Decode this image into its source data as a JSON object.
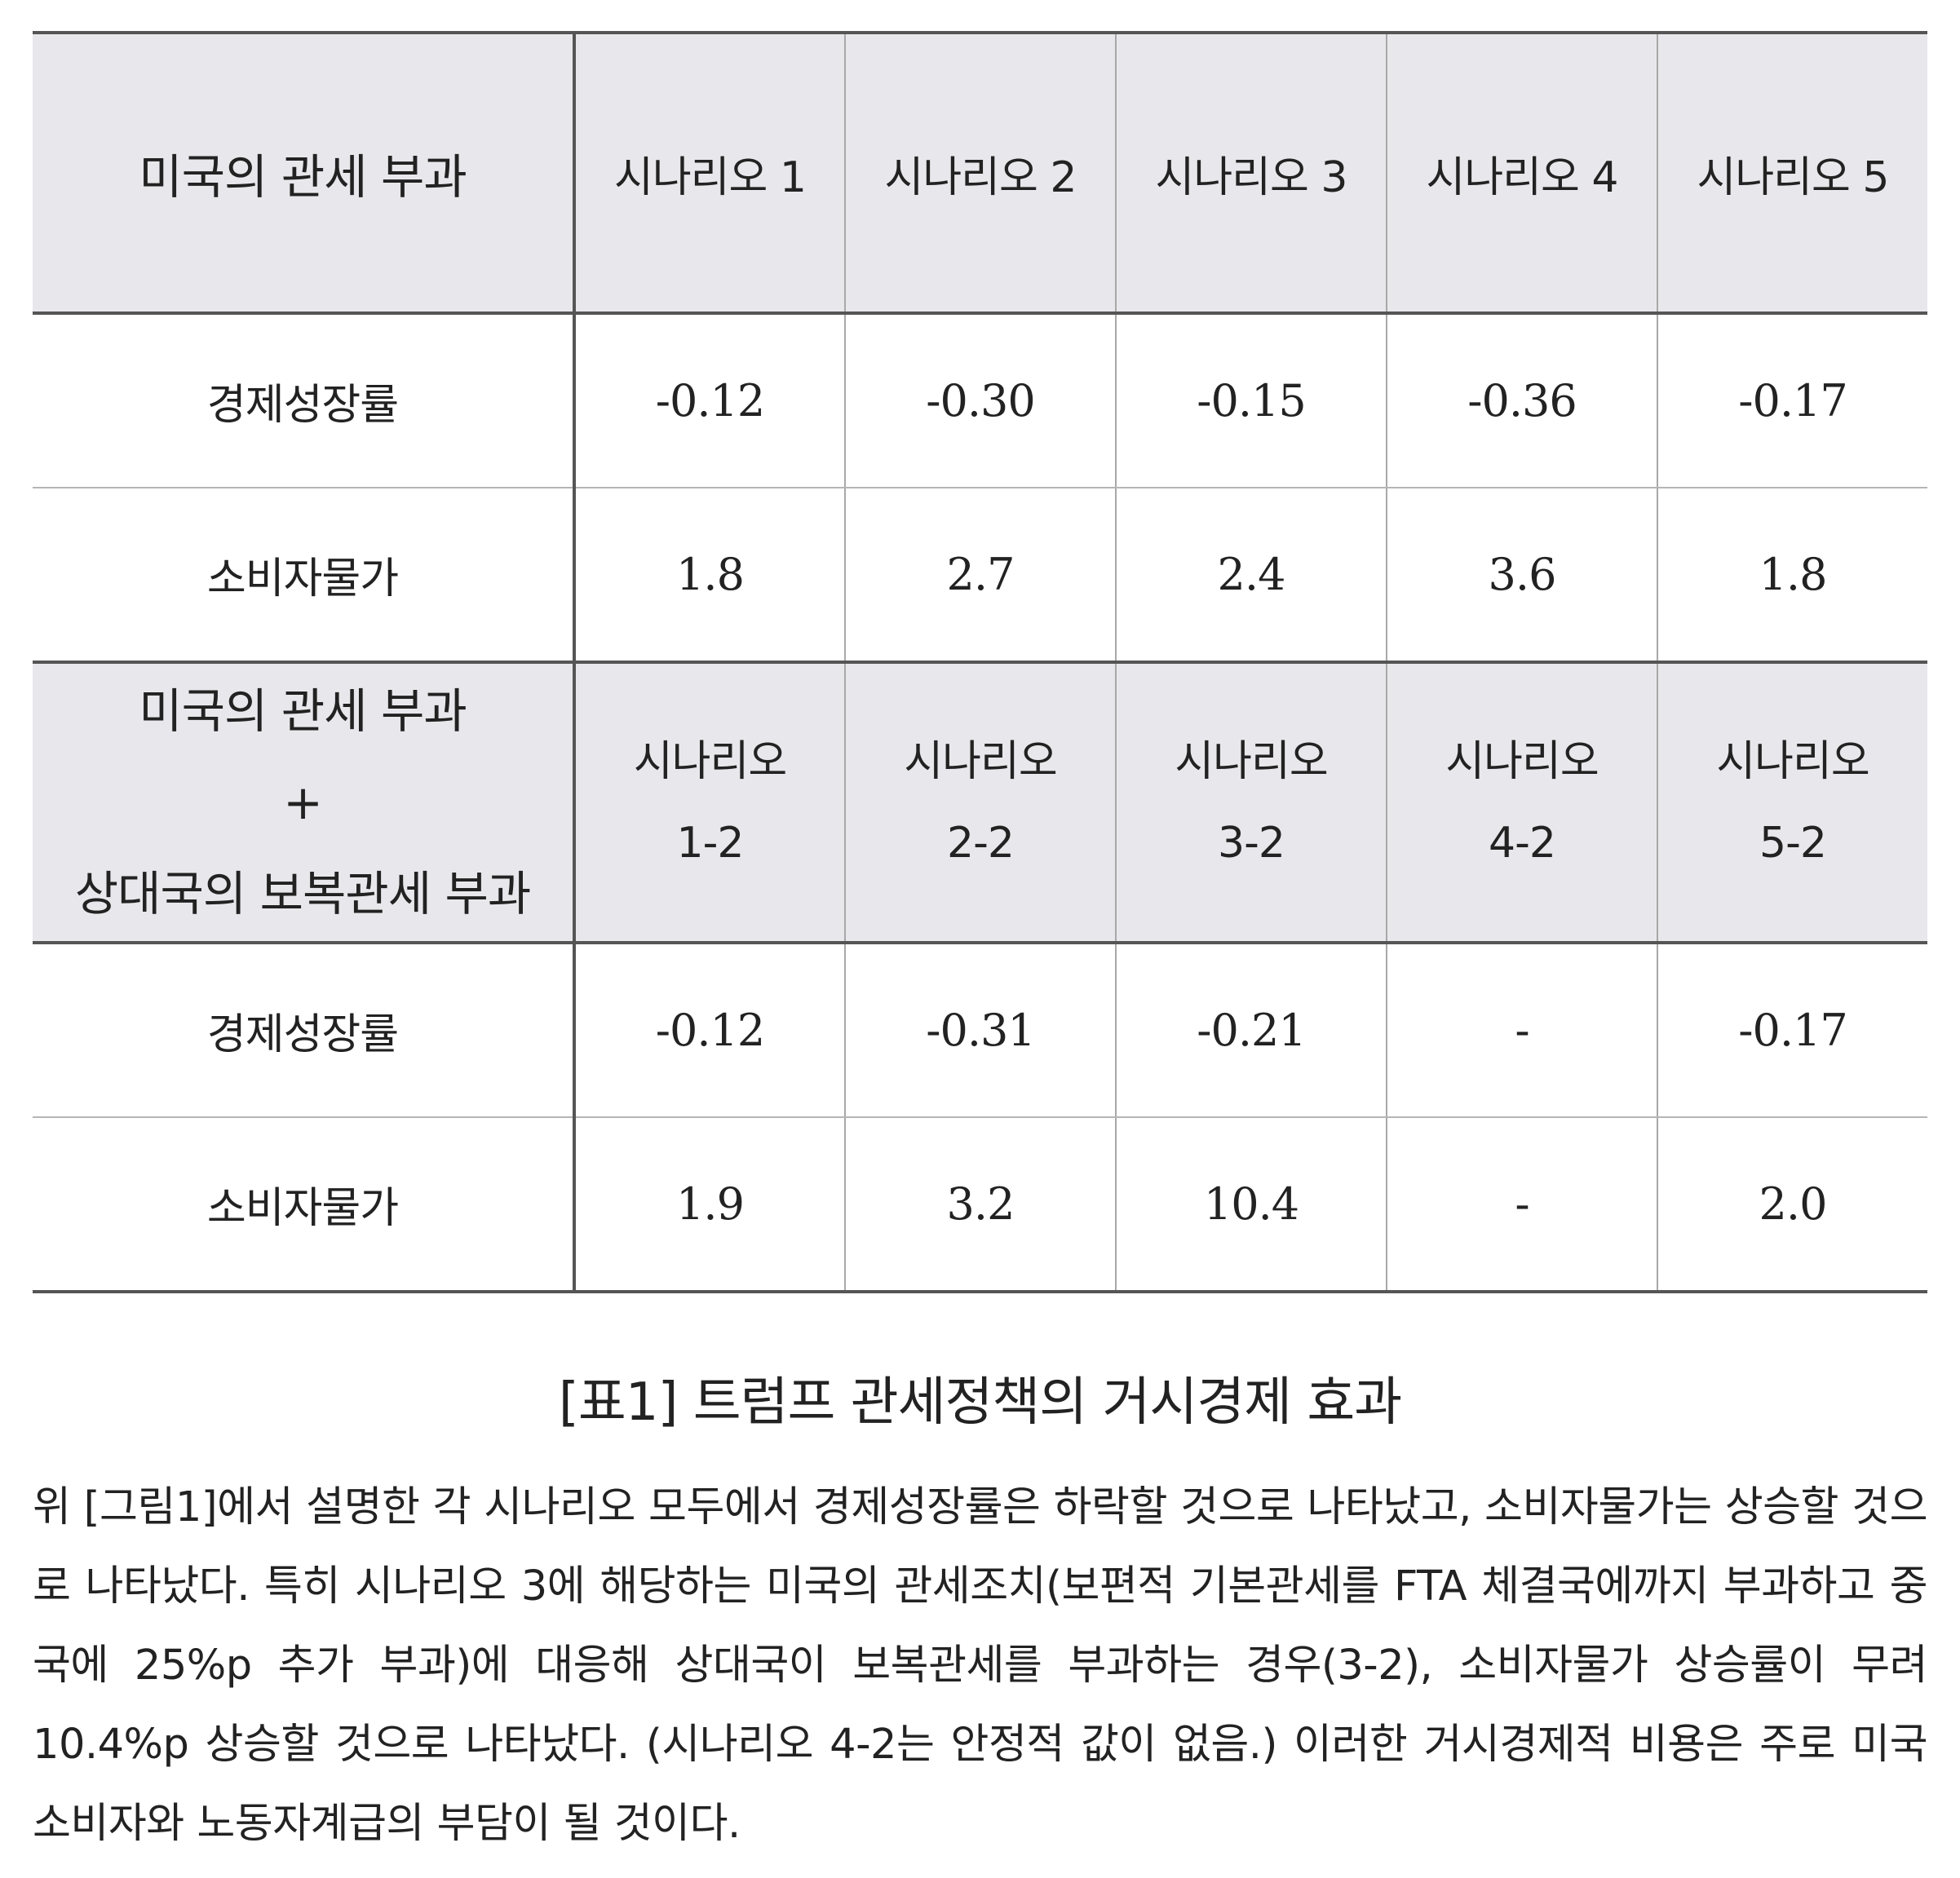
{
  "table": {
    "section1": {
      "header": {
        "label": "미국의 관세 부과",
        "scenarios": [
          "시나리오 1",
          "시나리오 2",
          "시나리오 3",
          "시나리오 4",
          "시나리오 5"
        ]
      },
      "rows": [
        {
          "label": "경제성장률",
          "values": [
            "-0.12",
            "-0.30",
            "-0.15",
            "-0.36",
            "-0.17"
          ]
        },
        {
          "label": "소비자물가",
          "values": [
            "1.8",
            "2.7",
            "2.4",
            "3.6",
            "1.8"
          ]
        }
      ]
    },
    "section2": {
      "header": {
        "label_lines": [
          "미국의 관세 부과",
          "+",
          "상대국의 보복관세 부과"
        ],
        "scenarios": [
          {
            "line1": "시나리오",
            "line2": "1-2"
          },
          {
            "line1": "시나리오",
            "line2": "2-2"
          },
          {
            "line1": "시나리오",
            "line2": "3-2"
          },
          {
            "line1": "시나리오",
            "line2": "4-2"
          },
          {
            "line1": "시나리오",
            "line2": "5-2"
          }
        ]
      },
      "rows": [
        {
          "label": "경제성장률",
          "values": [
            "-0.12",
            "-0.31",
            "-0.21",
            "-",
            "-0.17"
          ]
        },
        {
          "label": "소비자물가",
          "values": [
            "1.9",
            "3.2",
            "10.4",
            "-",
            "2.0"
          ]
        }
      ]
    }
  },
  "caption": "[표1] 트럼프 관세정책의 거시경제 효과",
  "paragraph": "위 [그림1]에서 설명한 각 시나리오 모두에서 경제성장률은 하락할 것으로 나타났고, 소비자물가는 상승할 것으로 나타났다. 특히 시나리오 3에 해당하는 미국의 관세조치(보편적 기본관세를 FTA 체결국에까지 부과하고 중국에 25%p 추가 부과)에 대응해 상대국이 보복관세를 부과하는 경우(3-2), 소비자물가 상승률이 무려 10.4%p 상승할 것으로 나타났다. (시나리오 4-2는 안정적 값이 없음.) 이러한 거시경제적 비용은 주로 미국 소비자와 노동자계급의 부담이 될 것이다."
}
